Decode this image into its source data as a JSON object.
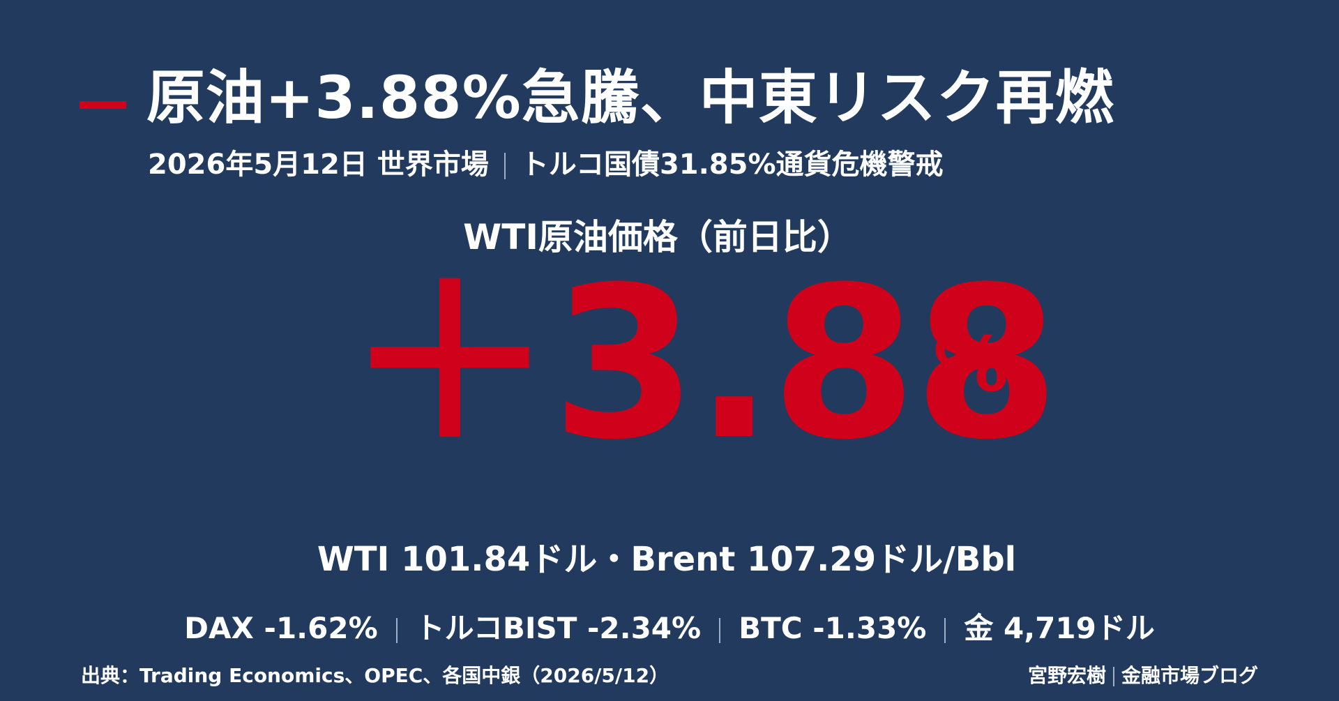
{
  "header": {
    "title": "原油+3.88%急騰、中東リスク再燃",
    "subtitle": [
      "2026年5月12日 世界市場",
      "トルコ国債31.85%通貨危機警戒"
    ]
  },
  "headline": {
    "label": "WTI原油価格（前日比）",
    "value": "＋3.88",
    "unit": "%"
  },
  "prices": "WTI 101.84ドル・Brent 107.29ドル/Bbl",
  "indicators": [
    "DAX -1.62%",
    "トルコBIST -2.34%",
    "BTC -1.33%",
    "金 4,719ドル"
  ],
  "footer": {
    "source": "出典：Trading Economics、OPEC、各国中銀（2026/5/12）",
    "author": [
      "宮野宏樹",
      "金融市場ブログ"
    ]
  }
}
